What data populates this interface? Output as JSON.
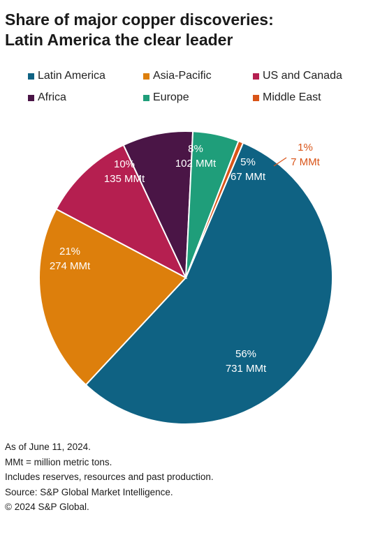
{
  "chart_data": {
    "type": "pie",
    "title": "Share of major copper discoveries:",
    "subtitle": "Latin America the clear leader",
    "slices": [
      {
        "name": "Latin America",
        "value": 731,
        "pct_label": "56%",
        "value_label": "731 MMt",
        "color": "#0f6283"
      },
      {
        "name": "Asia-Pacific",
        "value": 274,
        "pct_label": "21%",
        "value_label": "274 MMt",
        "color": "#dd7f0c"
      },
      {
        "name": "US and Canada",
        "value": 135,
        "pct_label": "10%",
        "value_label": "135 MMt",
        "color": "#b51f50"
      },
      {
        "name": "Africa",
        "value": 102,
        "pct_label": "8%",
        "value_label": "102 MMt",
        "color": "#4a1546"
      },
      {
        "name": "Europe",
        "value": 67,
        "pct_label": "5%",
        "value_label": "67 MMt",
        "color": "#1f9e7a"
      },
      {
        "name": "Middle East",
        "value": 7,
        "pct_label": "1%",
        "value_label": "7 MMt",
        "color": "#d95418"
      }
    ],
    "legend_position": "top"
  },
  "notes": [
    "As of June 11, 2024.",
    "MMt = million metric tons.",
    "Includes reserves, resources and past production.",
    "Source: S&P Global Market Intelligence.",
    "© 2024 S&P Global."
  ]
}
